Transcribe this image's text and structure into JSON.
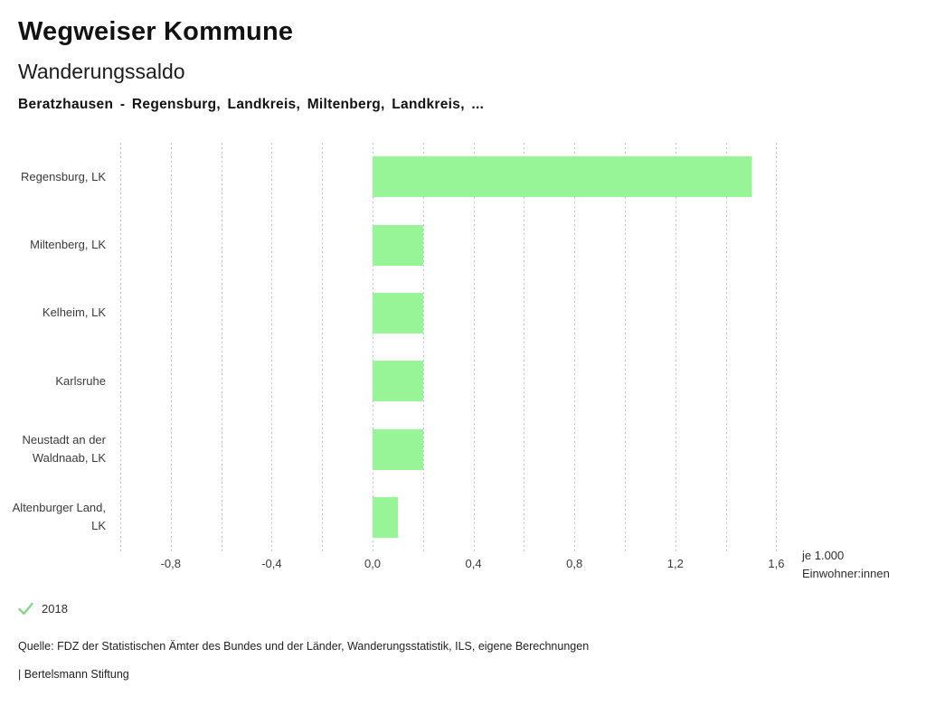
{
  "page": {
    "app_title": "Wegweiser Kommune"
  },
  "chart_data": {
    "type": "bar",
    "orientation": "horizontal",
    "title": "Wanderungssaldo",
    "subtitle": "Beratzhausen - Regensburg, Landkreis, Miltenberg, Landkreis, ...",
    "categories": [
      "Regensburg, LK",
      "Miltenberg, LK",
      "Kelheim, LK",
      "Karlsruhe",
      "Neustadt an der Waldnaab, LK",
      "Altenburger Land, LK"
    ],
    "series": [
      {
        "name": "2018",
        "values": [
          1.5,
          0.2,
          0.2,
          0.2,
          0.2,
          0.1
        ]
      }
    ],
    "xlim": [
      -1.0,
      1.613
    ],
    "gridline_step": 0.2,
    "grid": true,
    "gridline_style": "dashed",
    "xticks": [
      {
        "value": -0.8,
        "label": "-0,8"
      },
      {
        "value": -0.4,
        "label": "-0,4"
      },
      {
        "value": 0.0,
        "label": "0,0"
      },
      {
        "value": 0.4,
        "label": "0,4"
      },
      {
        "value": 0.8,
        "label": "0,8"
      },
      {
        "value": 1.2,
        "label": "1,2"
      },
      {
        "value": 1.6,
        "label": "1,6"
      }
    ],
    "xlabel": "je 1.000 Einwohner:innen",
    "xlabel_lines": [
      "je 1.000",
      "Einwohner:innen"
    ],
    "bar_color": "#97f497",
    "legend_position": "bottom-left"
  },
  "legend": {
    "icon": "check",
    "icon_color": "#84da84",
    "label": "2018"
  },
  "footer": {
    "source": "Quelle: FDZ der Statistischen Ämter des Bundes und der Länder, Wanderungsstatistik, ILS, eigene Berechnungen",
    "attribution": "| Bertelsmann Stiftung"
  }
}
